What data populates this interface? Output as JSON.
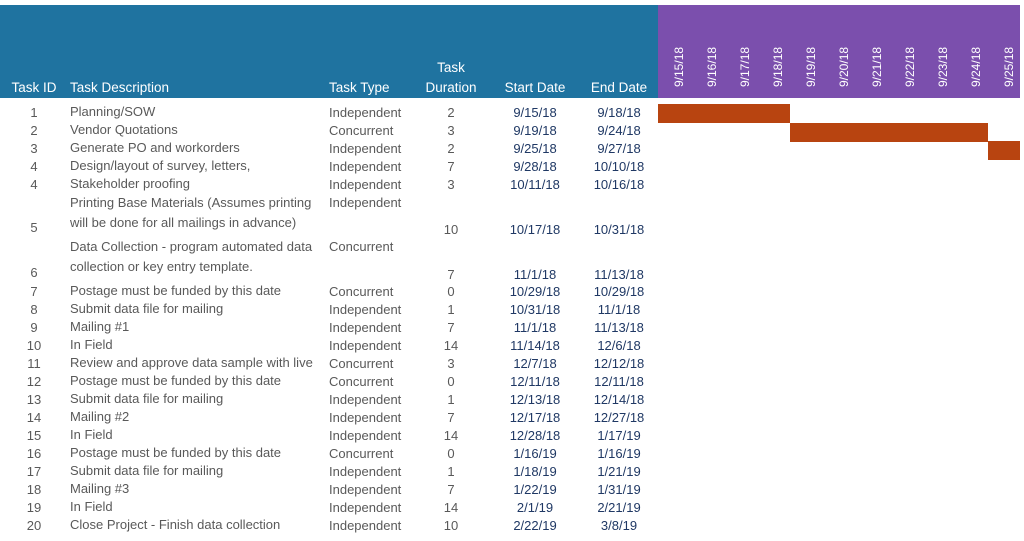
{
  "header": {
    "task_id": "Task ID",
    "task_description": "Task Description",
    "task_type": "Task Type",
    "task_duration_line1": "Task",
    "task_duration_line2": "Duration",
    "start_date": "Start Date",
    "end_date": "End Date",
    "timeline_dates": [
      "9/15/18",
      "9/16/18",
      "9/17/18",
      "9/18/18",
      "9/19/18",
      "9/20/18",
      "9/21/18",
      "9/22/18",
      "9/23/18",
      "9/24/18",
      "9/25/18"
    ]
  },
  "tasks": [
    {
      "id": "1",
      "desc": "Planning/SOW",
      "type": "Independent",
      "duration": "2",
      "start": "9/15/18",
      "end": "9/18/18"
    },
    {
      "id": "2",
      "desc": "Vendor Quotations",
      "type": "Concurrent",
      "duration": "3",
      "start": "9/19/18",
      "end": "9/24/18"
    },
    {
      "id": "3",
      "desc": "Generate PO and workorders",
      "type": "Independent",
      "duration": "2",
      "start": "9/25/18",
      "end": "9/27/18"
    },
    {
      "id": "4",
      "desc": "Design/layout of survey, letters,",
      "type": "Independent",
      "duration": "7",
      "start": "9/28/18",
      "end": "10/10/18"
    },
    {
      "id": "4",
      "desc": "Stakeholder proofing",
      "type": "Independent",
      "duration": "3",
      "start": "10/11/18",
      "end": "10/16/18"
    },
    {
      "id": "5",
      "desc": "Printing Base Materials (Assumes printing will be done for all mailings in advance)",
      "type": "Independent",
      "duration": "10",
      "start": "10/17/18",
      "end": "10/31/18"
    },
    {
      "id": "6",
      "desc": "Data Collection - program automated data collection or key entry template.",
      "type": "Concurrent",
      "duration": "7",
      "start": "11/1/18",
      "end": "11/13/18"
    },
    {
      "id": "7",
      "desc": "Postage must be funded by this date",
      "type": "Concurrent",
      "duration": "0",
      "start": "10/29/18",
      "end": "10/29/18"
    },
    {
      "id": "8",
      "desc": "Submit data file for mailing",
      "type": "Independent",
      "duration": "1",
      "start": "10/31/18",
      "end": "11/1/18"
    },
    {
      "id": "9",
      "desc": "Mailing #1",
      "type": "Independent",
      "duration": "7",
      "start": "11/1/18",
      "end": "11/13/18"
    },
    {
      "id": "10",
      "desc": "In Field",
      "type": "Independent",
      "duration": "14",
      "start": "11/14/18",
      "end": "12/6/18"
    },
    {
      "id": "11",
      "desc": "Review and approve data sample with live",
      "type": "Concurrent",
      "duration": "3",
      "start": "12/7/18",
      "end": "12/12/18"
    },
    {
      "id": "12",
      "desc": "Postage must be funded by this date",
      "type": "Concurrent",
      "duration": "0",
      "start": "12/11/18",
      "end": "12/11/18"
    },
    {
      "id": "13",
      "desc": "Submit data file for mailing",
      "type": "Independent",
      "duration": "1",
      "start": "12/13/18",
      "end": "12/14/18"
    },
    {
      "id": "14",
      "desc": "Mailing #2",
      "type": "Independent",
      "duration": "7",
      "start": "12/17/18",
      "end": "12/27/18"
    },
    {
      "id": "15",
      "desc": "In Field",
      "type": "Independent",
      "duration": "14",
      "start": "12/28/18",
      "end": "1/17/19"
    },
    {
      "id": "16",
      "desc": "Postage must be funded by this date",
      "type": "Concurrent",
      "duration": "0",
      "start": "1/16/19",
      "end": "1/16/19"
    },
    {
      "id": "17",
      "desc": "Submit data file for mailing",
      "type": "Independent",
      "duration": "1",
      "start": "1/18/19",
      "end": "1/21/19"
    },
    {
      "id": "18",
      "desc": "Mailing #3",
      "type": "Independent",
      "duration": "7",
      "start": "1/22/19",
      "end": "1/31/19"
    },
    {
      "id": "19",
      "desc": "In Field",
      "type": "Independent",
      "duration": "14",
      "start": "2/1/19",
      "end": "2/21/19"
    },
    {
      "id": "20",
      "desc": "Close Project - Finish data collection",
      "type": "Independent",
      "duration": "10",
      "start": "2/22/19",
      "end": "3/8/19"
    }
  ],
  "chart_data": {
    "type": "bar",
    "orientation": "horizontal-gantt",
    "categories": [
      "9/15/18",
      "9/16/18",
      "9/17/18",
      "9/18/18",
      "9/19/18",
      "9/20/18",
      "9/21/18",
      "9/22/18",
      "9/23/18",
      "9/24/18",
      "9/25/18"
    ],
    "bars": [
      {
        "task": "Planning/SOW",
        "start": "9/15/18",
        "end": "9/18/18"
      },
      {
        "task": "Vendor Quotations",
        "start": "9/19/18",
        "end": "9/24/18"
      },
      {
        "task": "Generate PO and workorders",
        "start": "9/25/18",
        "end": "9/27/18"
      }
    ],
    "grid": false,
    "bar_color": "#b84410"
  },
  "colors": {
    "header_teal": "#1f73a0",
    "header_purple": "#7b4fad",
    "bar": "#b84410",
    "date_text": "#1f3864",
    "body_text": "#595959"
  }
}
